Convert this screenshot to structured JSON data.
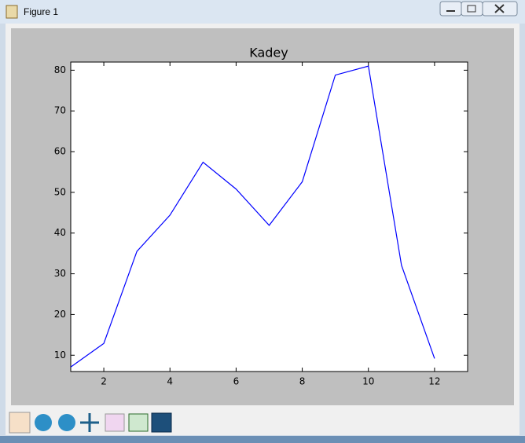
{
  "window": {
    "title": "Figure 1"
  },
  "chart_data": {
    "type": "line",
    "title": "Kadey",
    "x": [
      1,
      2,
      3,
      4,
      5,
      6,
      7,
      8,
      9,
      10,
      11,
      12
    ],
    "series": [
      {
        "color": "#0000ff",
        "values": [
          7.1,
          12.9,
          35.5,
          44.4,
          57.4,
          50.8,
          41.9,
          52.6,
          78.8,
          81.0,
          32.1,
          9.2
        ]
      }
    ],
    "xlim": [
      1,
      13
    ],
    "xticks": [
      2,
      4,
      6,
      8,
      10,
      12
    ],
    "ylim": [
      6,
      82
    ],
    "yticks": [
      10,
      20,
      30,
      40,
      50,
      60,
      70,
      80
    ]
  }
}
